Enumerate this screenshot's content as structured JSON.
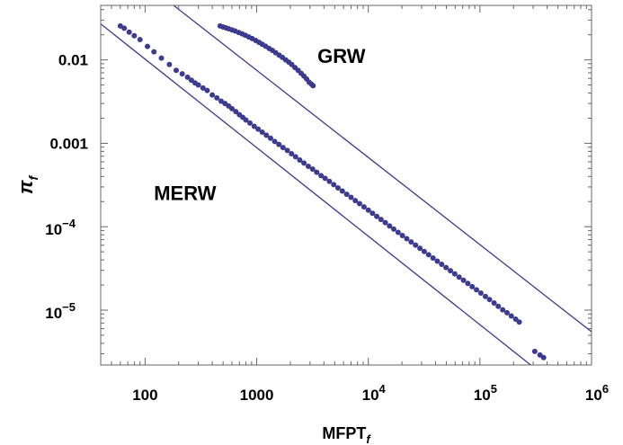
{
  "chart_data": {
    "type": "scatter",
    "xlabel": "MFPT",
    "xlabel_sub": "f",
    "ylabel": "π",
    "ylabel_sub": "f",
    "xscale": "log",
    "yscale": "log",
    "xlim": [
      40,
      1000000
    ],
    "ylim": [
      2.2e-06,
      0.045
    ],
    "grid": false,
    "x_ticks": [
      {
        "value": 100,
        "base": "100",
        "exp": ""
      },
      {
        "value": 1000,
        "base": "1000",
        "exp": ""
      },
      {
        "value": 10000,
        "base": "10",
        "exp": "4"
      },
      {
        "value": 100000,
        "base": "10",
        "exp": "5"
      },
      {
        "value": 1000000,
        "base": "10",
        "exp": "6"
      }
    ],
    "y_ticks": [
      {
        "value": 0.01,
        "base": "0.01",
        "exp": ""
      },
      {
        "value": 0.001,
        "base": "0.001",
        "exp": ""
      },
      {
        "value": 0.0001,
        "base": "10",
        "exp": "−4"
      },
      {
        "value": 1e-05,
        "base": "10",
        "exp": "−5"
      }
    ],
    "annotations": [
      {
        "text": "GRW",
        "x": 3500,
        "y": 0.0092
      },
      {
        "text": "MERW",
        "x": 120,
        "y": 0.00021
      }
    ],
    "colors": {
      "points": "#3b3b8f",
      "lines": "#3b3b8f",
      "frame": "#666666"
    },
    "reference_lines": [
      {
        "points": [
          [
            180,
            0.045
          ],
          [
            1000000,
            5.5e-06
          ]
        ]
      },
      {
        "points": [
          [
            40,
            0.027
          ],
          [
            285000,
            2.2e-06
          ]
        ]
      }
    ],
    "series": [
      {
        "points": [
          [
            60,
            0.0255
          ],
          [
            65,
            0.024
          ],
          [
            72,
            0.0215
          ],
          [
            80,
            0.0195
          ],
          [
            90,
            0.0175
          ],
          [
            105,
            0.0145
          ],
          [
            120,
            0.0125
          ],
          [
            140,
            0.0105
          ],
          [
            165,
            0.0088
          ],
          [
            190,
            0.0075
          ],
          [
            215,
            0.0068
          ],
          [
            240,
            0.0062
          ],
          [
            260,
            0.0057
          ],
          [
            280,
            0.0053
          ],
          [
            300,
            0.005
          ],
          [
            330,
            0.0046
          ],
          [
            360,
            0.0043
          ],
          [
            400,
            0.0038
          ],
          [
            440,
            0.0035
          ],
          [
            480,
            0.0032
          ],
          [
            520,
            0.003
          ],
          [
            560,
            0.0028
          ],
          [
            600,
            0.0026
          ],
          [
            650,
            0.0024
          ],
          [
            700,
            0.0022
          ],
          [
            750,
            0.00205
          ],
          [
            800,
            0.0019
          ],
          [
            870,
            0.00175
          ],
          [
            950,
            0.0016
          ],
          [
            1030,
            0.00148
          ],
          [
            1120,
            0.00136
          ],
          [
            1220,
            0.00125
          ],
          [
            1330,
            0.00115
          ],
          [
            1450,
            0.00105
          ],
          [
            1580,
            0.00097
          ],
          [
            1720,
            0.00089
          ],
          [
            1880,
            0.00082
          ],
          [
            2050,
            0.00075
          ],
          [
            2230,
            0.00069
          ],
          [
            2430,
            0.00063
          ],
          [
            2650,
            0.00058
          ],
          [
            2900,
            0.00053
          ],
          [
            3170,
            0.00049
          ],
          [
            3450,
            0.00045
          ],
          [
            3770,
            0.00041
          ],
          [
            4100,
            0.00038
          ],
          [
            4480,
            0.00035
          ],
          [
            4900,
            0.00032
          ],
          [
            5350,
            0.000292
          ],
          [
            5850,
            0.000268
          ],
          [
            6400,
            0.000245
          ],
          [
            7000,
            0.000225
          ],
          [
            7650,
            0.000206
          ],
          [
            8350,
            0.000189
          ],
          [
            9150,
            0.000173
          ],
          [
            10000,
            0.000158
          ],
          [
            10900,
            0.000145
          ],
          [
            11900,
            0.000133
          ],
          [
            13000,
            0.000122
          ],
          [
            14200,
            0.000112
          ],
          [
            15500,
            0.000102
          ],
          [
            16900,
            9.35e-05
          ],
          [
            18500,
            8.56e-05
          ],
          [
            20200,
            7.84e-05
          ],
          [
            22100,
            7.18e-05
          ],
          [
            24200,
            6.57e-05
          ],
          [
            26500,
            6.02e-05
          ],
          [
            29000,
            5.51e-05
          ],
          [
            31700,
            5.04e-05
          ],
          [
            34700,
            4.61e-05
          ],
          [
            38000,
            4.22e-05
          ],
          [
            41500,
            3.86e-05
          ],
          [
            45400,
            3.54e-05
          ],
          [
            49700,
            3.24e-05
          ],
          [
            54400,
            2.97e-05
          ],
          [
            59500,
            2.72e-05
          ],
          [
            65100,
            2.49e-05
          ],
          [
            71200,
            2.28e-05
          ],
          [
            77900,
            2.09e-05
          ],
          [
            85200,
            1.91e-05
          ],
          [
            93200,
            1.75e-05
          ],
          [
            102000,
            1.6e-05
          ],
          [
            112000,
            1.46e-05
          ],
          [
            122000,
            1.34e-05
          ],
          [
            134000,
            1.22e-05
          ],
          [
            146000,
            1.11e-05
          ],
          [
            160000,
            1.01e-05
          ],
          [
            175000,
            9.3e-06
          ],
          [
            191000,
            8.5e-06
          ],
          [
            209000,
            7.8e-06
          ],
          [
            225000,
            7.2e-06
          ],
          [
            310000,
            3.2e-06
          ],
          [
            345000,
            2.9e-06
          ],
          [
            372000,
            2.7e-06
          ]
        ]
      },
      {
        "points": [
          [
            470,
            0.0255
          ],
          [
            500,
            0.0248
          ],
          [
            530,
            0.0242
          ],
          [
            560,
            0.0236
          ],
          [
            600,
            0.0229
          ],
          [
            640,
            0.0222
          ],
          [
            690,
            0.0213
          ],
          [
            740,
            0.0205
          ],
          [
            790,
            0.0197
          ],
          [
            850,
            0.0188
          ],
          [
            910,
            0.018
          ],
          [
            980,
            0.0171
          ],
          [
            1050,
            0.0162
          ],
          [
            1120,
            0.0154
          ],
          [
            1200,
            0.0146
          ],
          [
            1290,
            0.0137
          ],
          [
            1380,
            0.013
          ],
          [
            1480,
            0.0122
          ],
          [
            1590,
            0.0114
          ],
          [
            1700,
            0.0107
          ],
          [
            1820,
            0.01
          ],
          [
            1940,
            0.0094
          ],
          [
            2060,
            0.0088
          ],
          [
            2200,
            0.0081
          ],
          [
            2350,
            0.0075
          ],
          [
            2500,
            0.0069
          ],
          [
            2650,
            0.0064
          ],
          [
            2800,
            0.0059
          ],
          [
            2950,
            0.0054
          ],
          [
            3100,
            0.0051
          ],
          [
            3200,
            0.0049
          ]
        ]
      }
    ]
  }
}
